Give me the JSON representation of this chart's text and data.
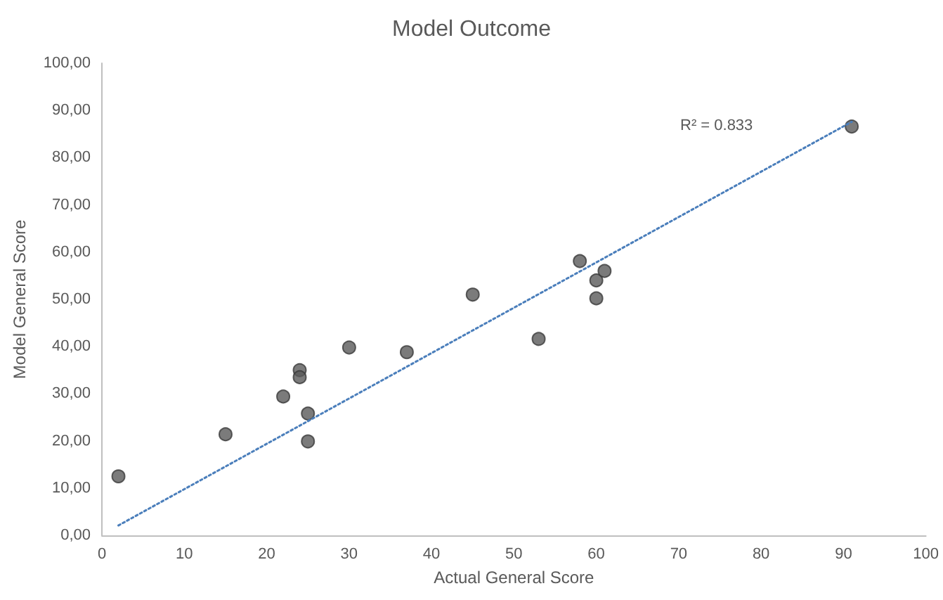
{
  "chart_data": {
    "type": "scatter",
    "title": "Model Outcome",
    "xlabel": "Actual General Score",
    "ylabel": "Model General Score",
    "series": [
      {
        "color": "#5a5a5a",
        "x": [
          2,
          15,
          22,
          24,
          24,
          25,
          25,
          30,
          37,
          45,
          53,
          58,
          60,
          60,
          61,
          91
        ],
        "values": [
          12.5,
          21.4,
          29.4,
          35.0,
          33.5,
          25.8,
          19.9,
          39.8,
          38.8,
          51.0,
          41.6,
          58.1,
          54.0,
          50.2,
          56.0,
          86.6
        ]
      },
      {
        "type": "line",
        "color": "#4a7ebb",
        "line_style": "dotted",
        "marker": "none",
        "x": [
          2,
          91
        ],
        "values": [
          2.1,
          87.6
        ]
      }
    ],
    "annotations": [
      "R² = 0.833"
    ],
    "marker": "circle",
    "grid": false,
    "xlim": [
      0,
      100
    ],
    "xticks": [
      0,
      10,
      20,
      30,
      40,
      50,
      60,
      70,
      80,
      90,
      100
    ],
    "ylim": [
      0,
      100
    ],
    "yticks": [
      {
        "value": 0,
        "label": "0,00"
      },
      {
        "value": 10,
        "label": "10,00"
      },
      {
        "value": 20,
        "label": "20,00"
      },
      {
        "value": 30,
        "label": "30,00"
      },
      {
        "value": 40,
        "label": "40,00"
      },
      {
        "value": 50,
        "label": "50,00"
      },
      {
        "value": 60,
        "label": "60,00"
      },
      {
        "value": 70,
        "label": "70,00"
      },
      {
        "value": 80,
        "label": "80,00"
      },
      {
        "value": 90,
        "label": "90,00"
      },
      {
        "value": 100,
        "label": "100,00"
      }
    ]
  }
}
